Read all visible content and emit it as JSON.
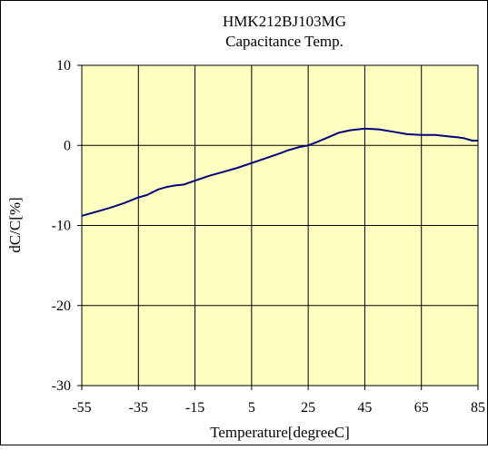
{
  "chart_data": {
    "type": "line",
    "title": "HMK212BJ103MG",
    "subtitle": "Capacitance Temp.",
    "xlabel": "Temperature[degreeC]",
    "ylabel": "dC/C[%]",
    "xlim": [
      -55,
      85
    ],
    "ylim": [
      -30,
      10
    ],
    "xticks": [
      -55,
      -35,
      -15,
      5,
      25,
      45,
      65,
      85
    ],
    "yticks": [
      10,
      0,
      -10,
      -20,
      -30
    ],
    "grid": true,
    "legend": "none",
    "series": [
      {
        "color": "#000080",
        "x": [
          -55,
          -45,
          -40,
          -35,
          -32,
          -28,
          -25,
          -22,
          -19,
          -15,
          -10,
          -5,
          0,
          5,
          10,
          15,
          18,
          22,
          25,
          28,
          32,
          36,
          40,
          45,
          50,
          55,
          60,
          65,
          70,
          75,
          78,
          80,
          83,
          85
        ],
        "y": [
          -8.8,
          -7.8,
          -7.2,
          -6.5,
          -6.2,
          -5.5,
          -5.2,
          -5.0,
          -4.9,
          -4.4,
          -3.8,
          -3.3,
          -2.8,
          -2.2,
          -1.6,
          -1.0,
          -0.6,
          -0.2,
          0.0,
          0.4,
          1.0,
          1.6,
          1.9,
          2.1,
          2.0,
          1.7,
          1.4,
          1.3,
          1.3,
          1.1,
          1.0,
          0.9,
          0.6,
          0.6
        ]
      }
    ]
  },
  "colors": {
    "plot_background": "#ffffc0",
    "grid": "#000000",
    "line": "#000080"
  }
}
